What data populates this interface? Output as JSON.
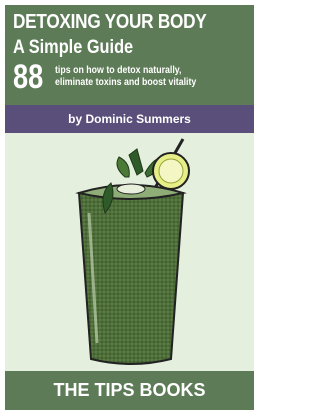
{
  "header": {
    "title": "DETOXING YOUR BODY",
    "subtitle": "A Simple Guide",
    "number": "88",
    "tagline": [
      "tips on how to detox naturally,",
      "eliminate toxins and boost vitality"
    ]
  },
  "author": "by Dominic Summers",
  "footer": "THE TIPS BOOKS"
}
